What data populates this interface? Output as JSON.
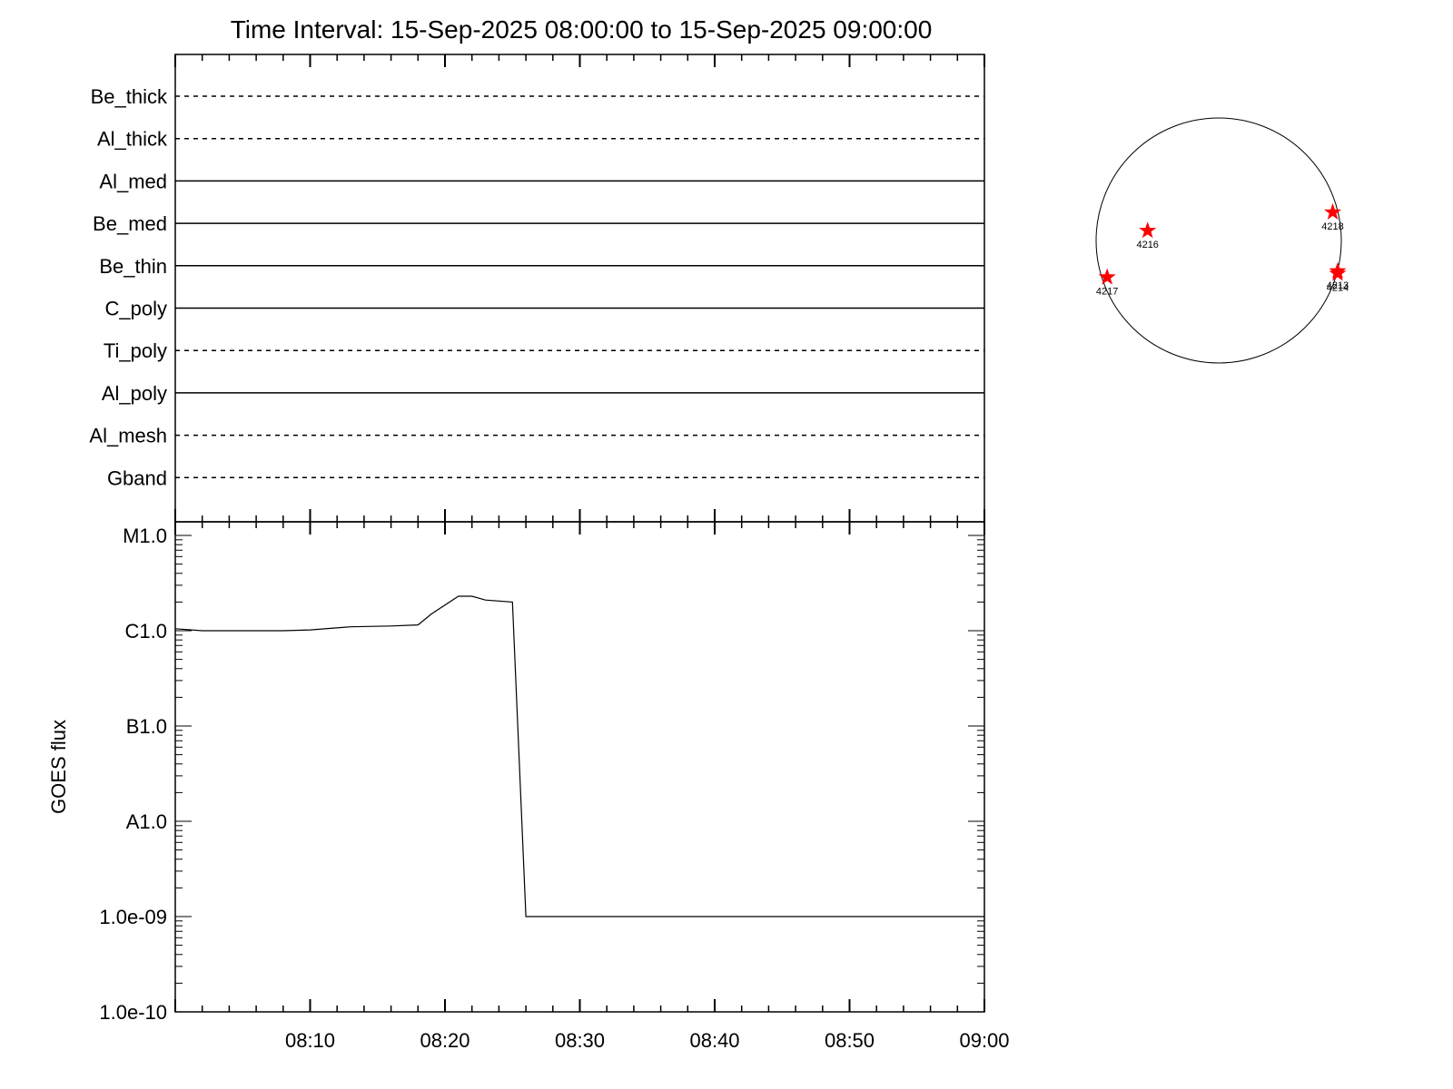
{
  "title": "Time Interval: 15-Sep-2025 08:00:00 to 15-Sep-2025 09:00:00",
  "chart_data": [
    {
      "type": "line",
      "panel": "filter-states",
      "xlim": [
        "08:00",
        "09:00"
      ],
      "filters": [
        {
          "name": "Be_thick",
          "style": "dashed"
        },
        {
          "name": "Al_thick",
          "style": "dashed"
        },
        {
          "name": "Al_med",
          "style": "solid"
        },
        {
          "name": "Be_med",
          "style": "solid"
        },
        {
          "name": "Be_thin",
          "style": "solid"
        },
        {
          "name": "C_poly",
          "style": "solid"
        },
        {
          "name": "Ti_poly",
          "style": "dashed"
        },
        {
          "name": "Al_poly",
          "style": "solid"
        },
        {
          "name": "Al_mesh",
          "style": "dashed"
        },
        {
          "name": "Gband",
          "style": "dashed"
        }
      ]
    },
    {
      "type": "line",
      "panel": "goes-flux",
      "ylabel": "GOES flux",
      "yscale": "log",
      "ylim": [
        1e-10,
        1e-05
      ],
      "yticks": [
        {
          "label": "M1.0",
          "value": 1e-05
        },
        {
          "label": "C1.0",
          "value": 1e-06
        },
        {
          "label": "B1.0",
          "value": 1e-07
        },
        {
          "label": "A1.0",
          "value": 1e-08
        },
        {
          "label": "1.0e-09",
          "value": 1e-09
        },
        {
          "label": "1.0e-10",
          "value": 1e-10
        }
      ],
      "xlim": [
        "08:00",
        "09:00"
      ],
      "xticks": [
        "08:10",
        "08:20",
        "08:30",
        "08:40",
        "08:50",
        "09:00"
      ],
      "series": [
        {
          "x": [
            "08:00",
            "08:02",
            "08:04",
            "08:08",
            "08:10",
            "08:13",
            "08:16",
            "08:18",
            "08:19",
            "08:21",
            "08:22",
            "08:23",
            "08:25",
            "08:26",
            "09:00"
          ],
          "y": [
            1.05e-06,
            1e-06,
            1e-06,
            1e-06,
            1.02e-06,
            1.1e-06,
            1.12e-06,
            1.15e-06,
            1.5e-06,
            2.3e-06,
            2.3e-06,
            2.1e-06,
            2e-06,
            1e-09,
            1e-09
          ]
        }
      ]
    }
  ],
  "solar_disk": {
    "marker_color": "#ff0000",
    "regions": [
      {
        "label": "4216",
        "lon": -0.58,
        "lat": 0.08
      },
      {
        "label": "4218",
        "lon": 0.93,
        "lat": 0.23
      },
      {
        "label": "4217",
        "lon": -0.91,
        "lat": -0.3
      },
      {
        "label": "4213",
        "lon": 0.97,
        "lat": -0.25
      },
      {
        "label": "4214",
        "lon": 0.97,
        "lat": -0.27
      }
    ]
  }
}
